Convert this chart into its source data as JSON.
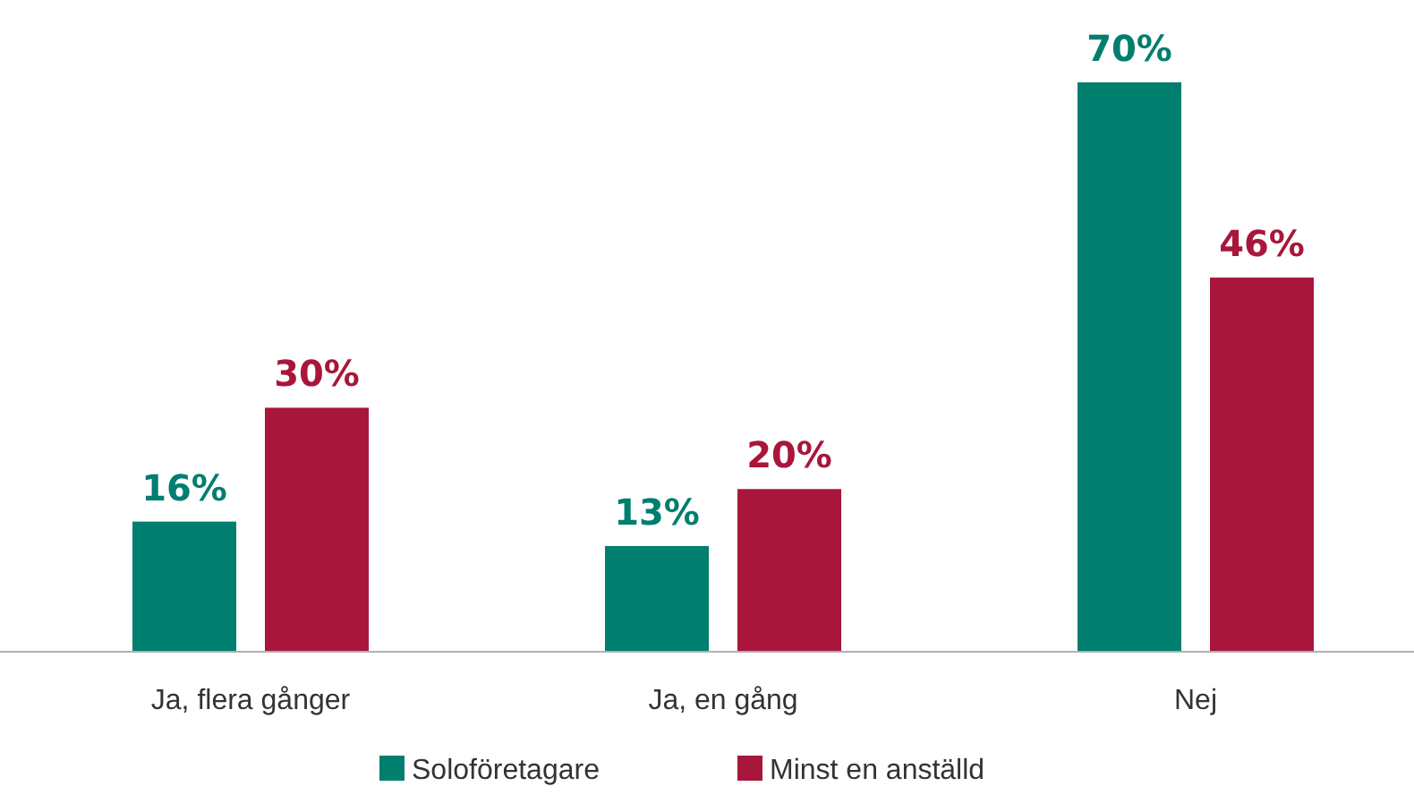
{
  "chart_data": {
    "type": "bar",
    "categories": [
      "Ja, flera gånger",
      "Ja, en gång",
      "Nej"
    ],
    "series": [
      {
        "name": "Soloföretagare",
        "color": "#007e6e",
        "values": [
          16,
          13,
          70
        ],
        "value_labels": [
          "16%",
          "13%",
          "70%"
        ]
      },
      {
        "name": "Minst en anställd",
        "color": "#a8173b",
        "values": [
          30,
          20,
          46
        ],
        "value_labels": [
          "30%",
          "20%",
          "46%"
        ]
      }
    ],
    "relative": false,
    "legend": "bottom"
  }
}
